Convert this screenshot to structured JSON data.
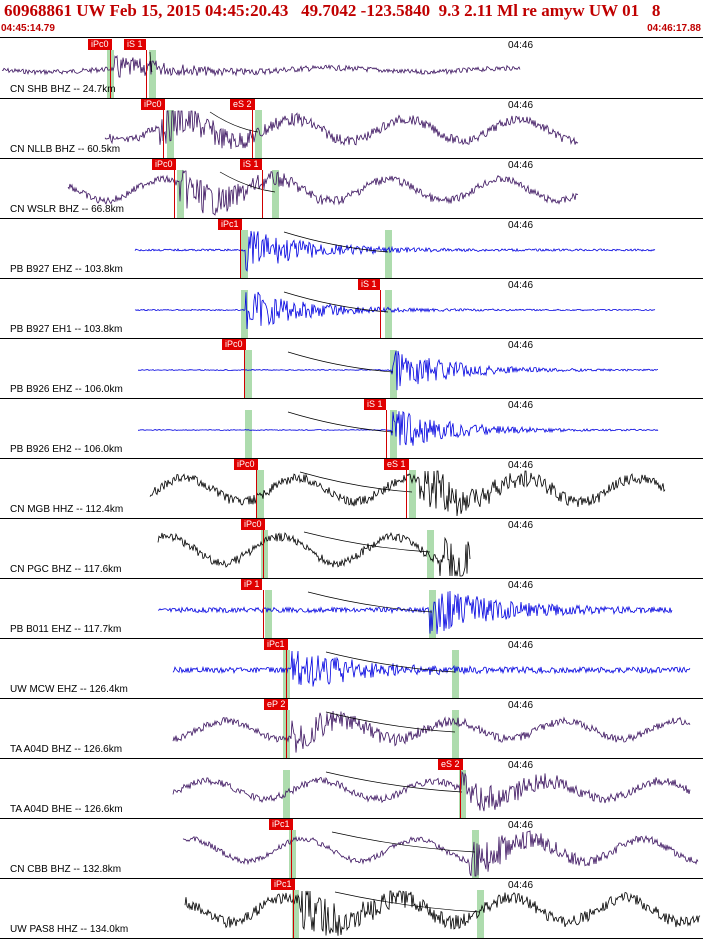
{
  "header": {
    "title": "60968861 UW Feb 15, 2015 04:45:20.43   49.7042 -123.5840  9.3 2.11 Ml re amyw UW 01   8",
    "start_time": "04:45:14.79",
    "end_time": "04:46:17.88"
  },
  "minute_label": "04:46",
  "traces": [
    {
      "label": "CN SHB BHZ -- 24.7km",
      "color": "#3c1460",
      "picks": [
        {
          "tag": "iPc0",
          "x": 88
        },
        {
          "tag": "iS 1",
          "x": 124
        }
      ],
      "pgreen": 110,
      "sgreen": 152,
      "start": 2,
      "end": 520,
      "amp": 10,
      "noise": 0.6,
      "burst": 115,
      "style": "quiet"
    },
    {
      "label": "CN NLLB BHZ -- 60.5km",
      "color": "#3c1460",
      "picks": [
        {
          "tag": "iPc0",
          "x": 141
        },
        {
          "tag": "eS 2",
          "x": 230
        }
      ],
      "pgreen": 170,
      "sgreen": 258,
      "start": 105,
      "end": 578,
      "amp": 18,
      "noise": 0.6,
      "burst": 160,
      "style": "wavy"
    },
    {
      "label": "CN WSLR BHZ -- 66.8km",
      "color": "#3c1460",
      "picks": [
        {
          "tag": "iPc0",
          "x": 152
        },
        {
          "tag": "iS 1",
          "x": 240
        }
      ],
      "pgreen": 180,
      "sgreen": 275,
      "start": 68,
      "end": 578,
      "amp": 18,
      "noise": 0.5,
      "burst": 180,
      "style": "wavy"
    },
    {
      "label": "PB B927 EHZ -- 103.8km",
      "color": "#0000e0",
      "picks": [
        {
          "tag": "iPc1",
          "x": 218
        }
      ],
      "pgreen": 244,
      "sgreen": 388,
      "start": 135,
      "end": 655,
      "amp": 20,
      "noise": 0.12,
      "burst": 246,
      "style": "hf"
    },
    {
      "label": "PB B927 EH1 -- 103.8km",
      "color": "#0000e0",
      "picks": [
        {
          "tag": "iS 1",
          "x": 358
        }
      ],
      "pgreen": 244,
      "sgreen": 388,
      "start": 135,
      "end": 655,
      "amp": 20,
      "noise": 0.08,
      "burst": 246,
      "style": "hf"
    },
    {
      "label": "PB B926 EHZ -- 106.0km",
      "color": "#0000e0",
      "picks": [
        {
          "tag": "iPc0",
          "x": 222
        }
      ],
      "pgreen": 248,
      "sgreen": 393,
      "start": 138,
      "end": 658,
      "amp": 20,
      "noise": 0.06,
      "burst": 392,
      "style": "hf"
    },
    {
      "label": "PB B926 EH2 -- 106.0km",
      "color": "#0000e0",
      "picks": [
        {
          "tag": "iS 1",
          "x": 364
        }
      ],
      "pgreen": 248,
      "sgreen": 393,
      "start": 138,
      "end": 658,
      "amp": 20,
      "noise": 0.05,
      "burst": 392,
      "style": "hf"
    },
    {
      "label": "CN MGB HHZ -- 112.4km",
      "color": "#000000",
      "picks": [
        {
          "tag": "iPc0",
          "x": 234
        },
        {
          "tag": "eS 1",
          "x": 384
        }
      ],
      "pgreen": 260,
      "sgreen": 412,
      "start": 150,
      "end": 665,
      "amp": 20,
      "noise": 0.6,
      "burst": 420,
      "style": "wavy"
    },
    {
      "label": "CN PGC BHZ -- 117.6km",
      "color": "#000000",
      "picks": [
        {
          "tag": "iPc0",
          "x": 241
        }
      ],
      "pgreen": 264,
      "sgreen": 430,
      "start": 158,
      "end": 470,
      "amp": 22,
      "noise": 0.5,
      "burst": 440,
      "style": "wavy"
    },
    {
      "label": "PB B011 EHZ -- 117.7km",
      "color": "#0000e0",
      "picks": [
        {
          "tag": "iP 1",
          "x": 241
        }
      ],
      "pgreen": 268,
      "sgreen": 432,
      "start": 158,
      "end": 672,
      "amp": 22,
      "noise": 0.3,
      "burst": 430,
      "style": "hf"
    },
    {
      "label": "UW MCW EHZ -- 126.4km",
      "color": "#0000e0",
      "picks": [
        {
          "tag": "iPc1",
          "x": 264
        }
      ],
      "pgreen": 286,
      "sgreen": 455,
      "start": 173,
      "end": 690,
      "amp": 20,
      "noise": 0.35,
      "burst": 292,
      "style": "hf"
    },
    {
      "label": "TA A04D BHZ -- 126.6km",
      "color": "#3c1460",
      "picks": [
        {
          "tag": "eP 2",
          "x": 264
        }
      ],
      "pgreen": 286,
      "sgreen": 455,
      "start": 173,
      "end": 690,
      "amp": 15,
      "noise": 0.6,
      "burst": 292,
      "style": "wavy"
    },
    {
      "label": "TA A04D BHE -- 126.6km",
      "color": "#3c1460",
      "picks": [
        {
          "tag": "eS 2",
          "x": 438
        }
      ],
      "pgreen": 286,
      "sgreen": 462,
      "start": 173,
      "end": 690,
      "amp": 15,
      "noise": 0.6,
      "burst": 462,
      "style": "wavy"
    },
    {
      "label": "CN CBB BHZ -- 132.8km",
      "color": "#3c1460",
      "picks": [
        {
          "tag": "iPc1",
          "x": 269
        }
      ],
      "pgreen": 292,
      "sgreen": 475,
      "start": 183,
      "end": 698,
      "amp": 18,
      "noise": 0.4,
      "burst": 470,
      "style": "wavy"
    },
    {
      "label": "UW PAS8 HHZ -- 134.0km",
      "color": "#000000",
      "picks": [
        {
          "tag": "iPc1",
          "x": 271
        }
      ],
      "pgreen": 295,
      "sgreen": 480,
      "start": 185,
      "end": 700,
      "amp": 20,
      "noise": 0.7,
      "burst": 300,
      "style": "wavy"
    }
  ]
}
